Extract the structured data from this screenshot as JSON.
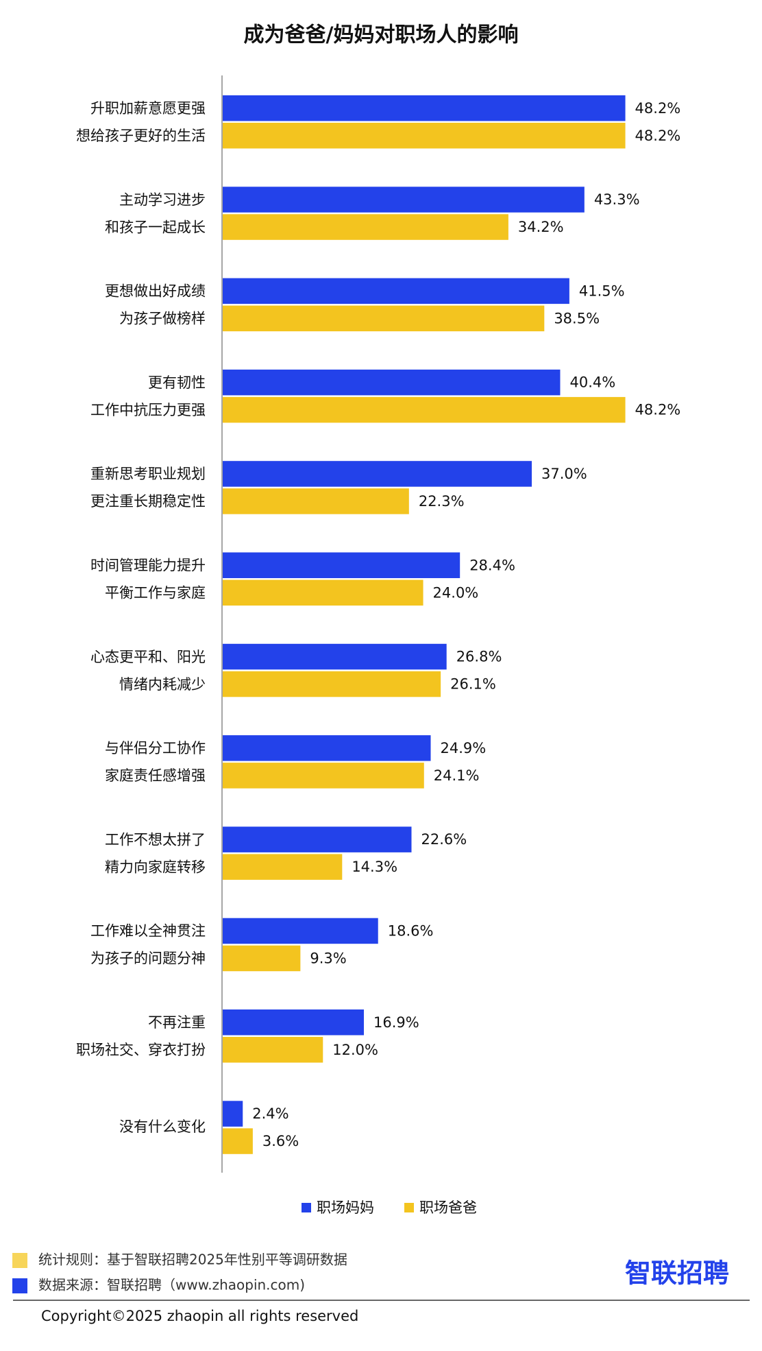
{
  "chart_data": {
    "type": "hbar",
    "title": "成为爸爸/妈妈对职场人的影响",
    "categories": [
      [
        "升职加薪意愿更强",
        "想给孩子更好的生活"
      ],
      [
        "主动学习进步",
        "和孩子一起成长"
      ],
      [
        "更想做出好成绩",
        "为孩子做榜样"
      ],
      [
        "更有韧性",
        "工作中抗压力更强"
      ],
      [
        "重新思考职业规划",
        "更注重长期稳定性"
      ],
      [
        "时间管理能力提升",
        "平衡工作与家庭"
      ],
      [
        "心态更平和、阳光",
        "情绪内耗减少"
      ],
      [
        "与伴侣分工协作",
        "家庭责任感增强"
      ],
      [
        "工作不想太拼了",
        "精力向家庭转移"
      ],
      [
        "工作难以全神贯注",
        "为孩子的问题分神"
      ],
      [
        "不再注重",
        "职场社交、穿衣打扮"
      ],
      [
        "没有什么变化"
      ]
    ],
    "series": [
      {
        "name": "职场妈妈",
        "color": "#2342ea",
        "values": [
          48.2,
          43.3,
          41.5,
          40.4,
          37.0,
          28.4,
          26.8,
          24.9,
          22.6,
          18.6,
          16.9,
          2.4
        ],
        "value_labels": [
          "48.2%",
          "43.3%",
          "41.5%",
          "40.4%",
          "37.0%",
          "28.4%",
          "26.8%",
          "24.9%",
          "22.6%",
          "18.6%",
          "16.9%",
          "2.4%"
        ]
      },
      {
        "name": "职场爸爸",
        "color": "#f3c41f",
        "values": [
          48.2,
          34.2,
          38.5,
          48.2,
          22.3,
          24.0,
          26.1,
          24.1,
          14.3,
          9.3,
          12.0,
          3.6
        ],
        "value_labels": [
          "48.2%",
          "34.2%",
          "38.5%",
          "48.2%",
          "22.3%",
          "24.0%",
          "26.1%",
          "24.1%",
          "14.3%",
          "9.3%",
          "12.0%",
          "3.6%"
        ]
      }
    ]
  },
  "footer": {
    "notes": [
      {
        "text": "统计规则：基于智联招聘2025年性别平等调研数据",
        "color": "#f7d55a"
      },
      {
        "text": "数据来源：智联招聘（www.zhaopin.com)",
        "color": "#2342ea"
      }
    ],
    "logo": "智联招聘",
    "copyright": "Copyright©2025 zhaopin all rights reserved"
  }
}
